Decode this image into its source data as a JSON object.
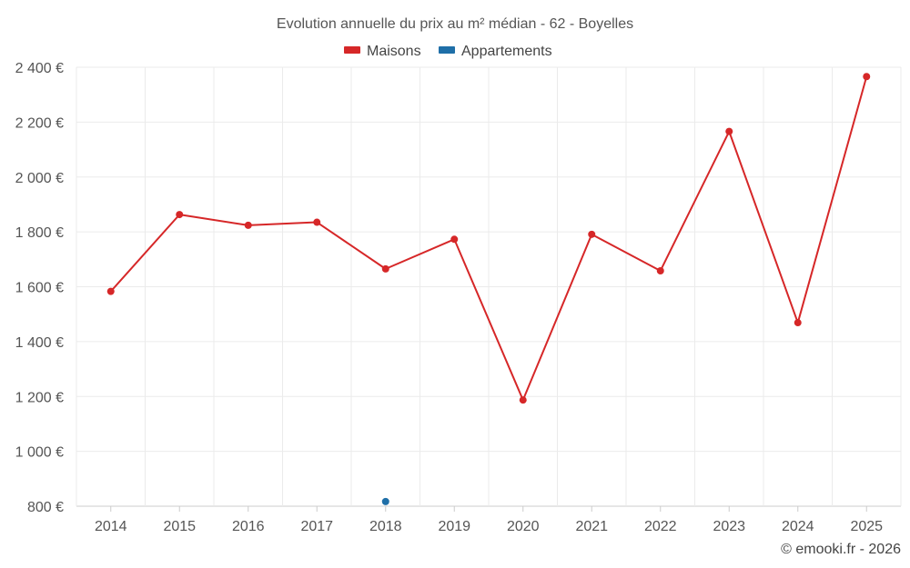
{
  "chart_data": {
    "type": "line",
    "title": "Evolution annuelle du prix au m² médian - 62 - Boyelles",
    "categories": [
      "2014",
      "2015",
      "2016",
      "2017",
      "2018",
      "2019",
      "2020",
      "2021",
      "2022",
      "2023",
      "2024",
      "2025"
    ],
    "y_ticks": [
      "800 €",
      "1 000 €",
      "1 200 €",
      "1 400 €",
      "1 600 €",
      "1 800 €",
      "2 000 €",
      "2 200 €",
      "2 400 €"
    ],
    "ylim": [
      800,
      2400
    ],
    "grid": true,
    "legend_position": "top-center",
    "series": [
      {
        "name": "Maisons",
        "color": "#d62728",
        "values": [
          1583,
          1863,
          1824,
          1835,
          1665,
          1773,
          1187,
          1791,
          1658,
          2166,
          1469,
          2366
        ]
      },
      {
        "name": "Appartements",
        "color": "#1f6fa8",
        "values": [
          null,
          null,
          null,
          null,
          817,
          null,
          null,
          null,
          null,
          null,
          null,
          null
        ]
      }
    ]
  },
  "credit": "© emooki.fr - 2026"
}
